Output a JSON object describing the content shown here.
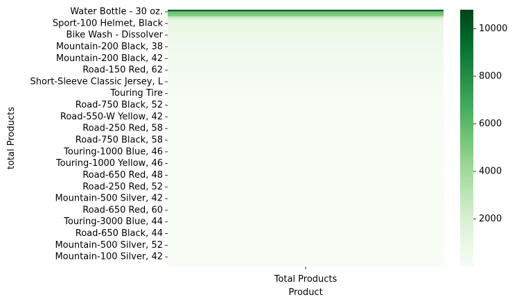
{
  "chart_data": {
    "type": "heatmap",
    "title": "",
    "xlabel": "Product",
    "ylabel": "total Products",
    "x_categories": [
      "Total Products"
    ],
    "colormap": "Greens",
    "colorbar": {
      "range": [
        0,
        10800
      ],
      "ticks": [
        2000,
        4000,
        6000,
        8000,
        10000
      ],
      "tick_labels": [
        "2000",
        "4000",
        "6000",
        "8000",
        "10000"
      ]
    },
    "y_tick_labels": [
      "Water Bottle - 30 oz.",
      "Sport-100 Helmet, Black",
      "Bike Wash - Dissolver",
      "Mountain-200 Black, 38",
      "Mountain-200 Black, 42",
      "Road-150 Red, 62",
      "Short-Sleeve Classic Jersey, L",
      "Touring Tire",
      "Road-750 Black, 52",
      "Road-550-W Yellow, 42",
      "Road-250 Red, 58",
      "Road-750 Black, 58",
      "Touring-1000 Blue, 46",
      "Touring-1000 Yellow, 46",
      "Road-650 Red, 48",
      "Road-250 Red, 52",
      "Mountain-500 Silver, 42",
      "Road-650 Red, 60",
      "Touring-3000 Blue, 44",
      "Road-650 Black, 44",
      "Mountain-500 Silver, 52",
      "Mountain-100 Silver, 42"
    ],
    "values": [
      10600,
      10100,
      9200,
      5800,
      5600,
      5500,
      5400,
      5300,
      5200,
      5100,
      5050,
      5000,
      3200,
      3000,
      2600,
      2100,
      1900,
      1800,
      1350,
      1300,
      1250,
      1200,
      1150,
      1120,
      1100,
      1080,
      1060,
      1040,
      1020,
      1000,
      990,
      980,
      970,
      960,
      950,
      940,
      930,
      920,
      910,
      900,
      890,
      880,
      870,
      860,
      850,
      840,
      830,
      820,
      810,
      800,
      790,
      780,
      770,
      760,
      750,
      740,
      730,
      720,
      710,
      700,
      690,
      680,
      670,
      660,
      650,
      640,
      630,
      620,
      610,
      600,
      590,
      580,
      570,
      560,
      550,
      540,
      530,
      520,
      510,
      500,
      490,
      480,
      470,
      460,
      450,
      440,
      430,
      420,
      410,
      400,
      395,
      390,
      385,
      380,
      375,
      370,
      365,
      360,
      355,
      350,
      345,
      340,
      335,
      330,
      325,
      320,
      315,
      310,
      305,
      300,
      295,
      290,
      285,
      280,
      275,
      270,
      265,
      260,
      255,
      250,
      245,
      240,
      235,
      230,
      225,
      220,
      215,
      210,
      205,
      200,
      195,
      190,
      185,
      180,
      175,
      170,
      165,
      160,
      155,
      150,
      145,
      140,
      135,
      130,
      125,
      120,
      115,
      110,
      105,
      100,
      95,
      90,
      85,
      80,
      75,
      70,
      65,
      60,
      55,
      50,
      45,
      40,
      35,
      30,
      25,
      20,
      18,
      16,
      14,
      12,
      10,
      9,
      8,
      7,
      6,
      5,
      4,
      3,
      2,
      1,
      1,
      1,
      1,
      1,
      1,
      1,
      1,
      1,
      1,
      1,
      1,
      1,
      1,
      1,
      1,
      1,
      1,
      1,
      1,
      1,
      1,
      1,
      1,
      1,
      1,
      1,
      1,
      1,
      1,
      1,
      1,
      1,
      1,
      1,
      1,
      1,
      1,
      1,
      1,
      1,
      1,
      1,
      1,
      1,
      1,
      1,
      1,
      1,
      1,
      1,
      1,
      1,
      1,
      1,
      1,
      1,
      1,
      1,
      1,
      1,
      1,
      1,
      1,
      1,
      1,
      1,
      1,
      1,
      1,
      1,
      1,
      1,
      1,
      1,
      1,
      1,
      1,
      1,
      1,
      1,
      1,
      1,
      1,
      1,
      1,
      1,
      1,
      1,
      1,
      1,
      1,
      1,
      1,
      1,
      1,
      1,
      1,
      1,
      1,
      1,
      1,
      1,
      1,
      1,
      1,
      1,
      1,
      1,
      1,
      1,
      1,
      1,
      1,
      1,
      1,
      1,
      1,
      1,
      1,
      1,
      1,
      1,
      1,
      1,
      1,
      1,
      1,
      1,
      1,
      1,
      1,
      1,
      1,
      1,
      1,
      1,
      1,
      1,
      1,
      1,
      1,
      1,
      1,
      1,
      1,
      1,
      1,
      1,
      1,
      1,
      1,
      1,
      1,
      1,
      1,
      1,
      1,
      1,
      1,
      1,
      1,
      1,
      1,
      1,
      1,
      1,
      1,
      1,
      1,
      1,
      1,
      1,
      1,
      1,
      1,
      1,
      1,
      1,
      1,
      1,
      1,
      1,
      1,
      1,
      1,
      1,
      1,
      1,
      1,
      1,
      1,
      1,
      1,
      1,
      1,
      1,
      1,
      1,
      1,
      1,
      1,
      1,
      1,
      1,
      1,
      1,
      1,
      1,
      1,
      1,
      1,
      1,
      1,
      1,
      1,
      1,
      1,
      1,
      1,
      1,
      1,
      1,
      1,
      1,
      1,
      1,
      1,
      1,
      1,
      1,
      1,
      1,
      1,
      1,
      1,
      1,
      1,
      1,
      1,
      1,
      1,
      1,
      1,
      1,
      1,
      1,
      1,
      1,
      1,
      1,
      1,
      1,
      1,
      1,
      1,
      1,
      1,
      1,
      1,
      1,
      1,
      1,
      1,
      1,
      1,
      1,
      1,
      1,
      1,
      1,
      1,
      1,
      1,
      1,
      1,
      1,
      1,
      1,
      1,
      1,
      1,
      1,
      1,
      1,
      1,
      1,
      1,
      1,
      1,
      1,
      1,
      1,
      1,
      1,
      1,
      1,
      1,
      1
    ]
  }
}
